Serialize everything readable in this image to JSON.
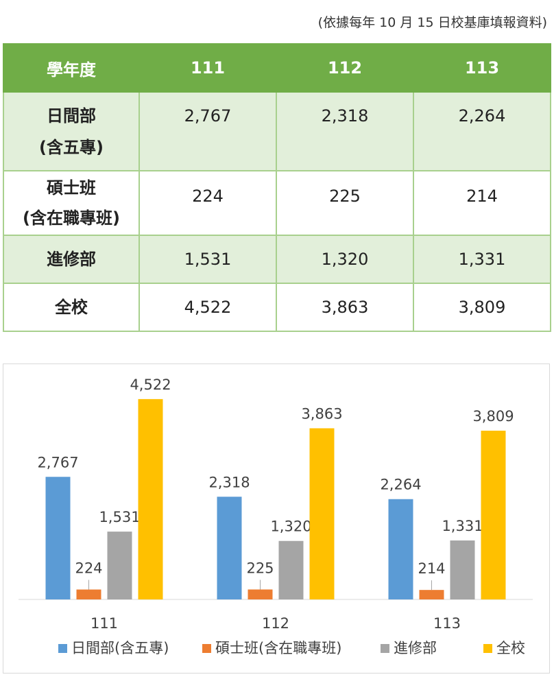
{
  "note": "(依據每年 10 月 15 日校基庫填報資料)",
  "table": {
    "header": [
      "學年度",
      "111",
      "112",
      "113"
    ],
    "rows": [
      {
        "label_lines": [
          "日間部",
          "(含五專)"
        ],
        "values": [
          "2,767",
          "2,318",
          "2,264"
        ]
      },
      {
        "label_lines": [
          "碩士班",
          "(含在職專班)"
        ],
        "values": [
          "224",
          "225",
          "214"
        ]
      },
      {
        "label_lines": [
          "進修部"
        ],
        "values": [
          "1,531",
          "1,320",
          "1,331"
        ]
      },
      {
        "label_lines": [
          "全校"
        ],
        "values": [
          "4,522",
          "3,863",
          "3,809"
        ]
      }
    ]
  },
  "chart_data": {
    "type": "bar",
    "categories": [
      "111",
      "112",
      "113"
    ],
    "series": [
      {
        "name": "日間部(含五專)",
        "color": "#5b9bd5",
        "values": [
          2767,
          2318,
          2264
        ],
        "labels": [
          "2,767",
          "2,318",
          "2,264"
        ]
      },
      {
        "name": "碩士班(含在職專班)",
        "color": "#ed7d31",
        "values": [
          224,
          225,
          214
        ],
        "labels": [
          "224",
          "225",
          "214"
        ]
      },
      {
        "name": "進修部",
        "color": "#a5a5a5",
        "values": [
          1531,
          1320,
          1331
        ],
        "labels": [
          "1,531",
          "1,320",
          "1,331"
        ]
      },
      {
        "name": "全校",
        "color": "#ffc000",
        "values": [
          4522,
          3863,
          3809
        ],
        "labels": [
          "4,522",
          "3,863",
          "3,809"
        ]
      }
    ],
    "ylim": [
      0,
      5000
    ],
    "grid": false,
    "legend": "bottom"
  }
}
